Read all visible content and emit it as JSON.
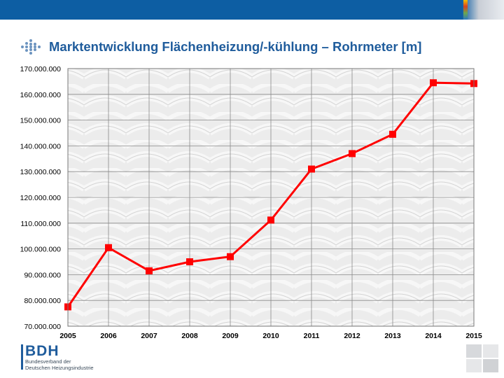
{
  "header": {
    "title": "Marktentwicklung Flächenheizung/-kühlung – Rohrmeter [m]"
  },
  "chart_data": {
    "type": "line",
    "title": "Marktentwicklung Flächenheizung/-kühlung – Rohrmeter [m]",
    "xlabel": "",
    "ylabel": "",
    "x": [
      "2005",
      "2006",
      "2007",
      "2008",
      "2009",
      "2010",
      "2011",
      "2012",
      "2013",
      "2014",
      "2015"
    ],
    "series": [
      {
        "values": [
          77500000,
          100500000,
          91500000,
          95000000,
          97000000,
          111200000,
          131000000,
          137000000,
          144500000,
          164500000,
          164200000
        ]
      }
    ],
    "ylim": [
      70000000,
      170000000
    ],
    "yticks": [
      70000000,
      80000000,
      90000000,
      100000000,
      110000000,
      120000000,
      130000000,
      140000000,
      150000000,
      160000000,
      170000000
    ],
    "ytick_labels": [
      "70.000.000",
      "80.000.000",
      "90.000.000",
      "100.000.000",
      "110.000.000",
      "120.000.000",
      "130.000.000",
      "140.000.000",
      "150.000.000",
      "160.000.000",
      "170.000.000"
    ],
    "grid": true,
    "line_color": "#ff0000",
    "marker_color": "#ff0000"
  },
  "logo": {
    "name": "BDH",
    "subtitle_line1": "Bundesverband der",
    "subtitle_line2": "Deutschen Heizungsindustrie"
  },
  "colors": {
    "brand_blue": "#1f5c9c",
    "header_bar": "#0d5ea3"
  }
}
